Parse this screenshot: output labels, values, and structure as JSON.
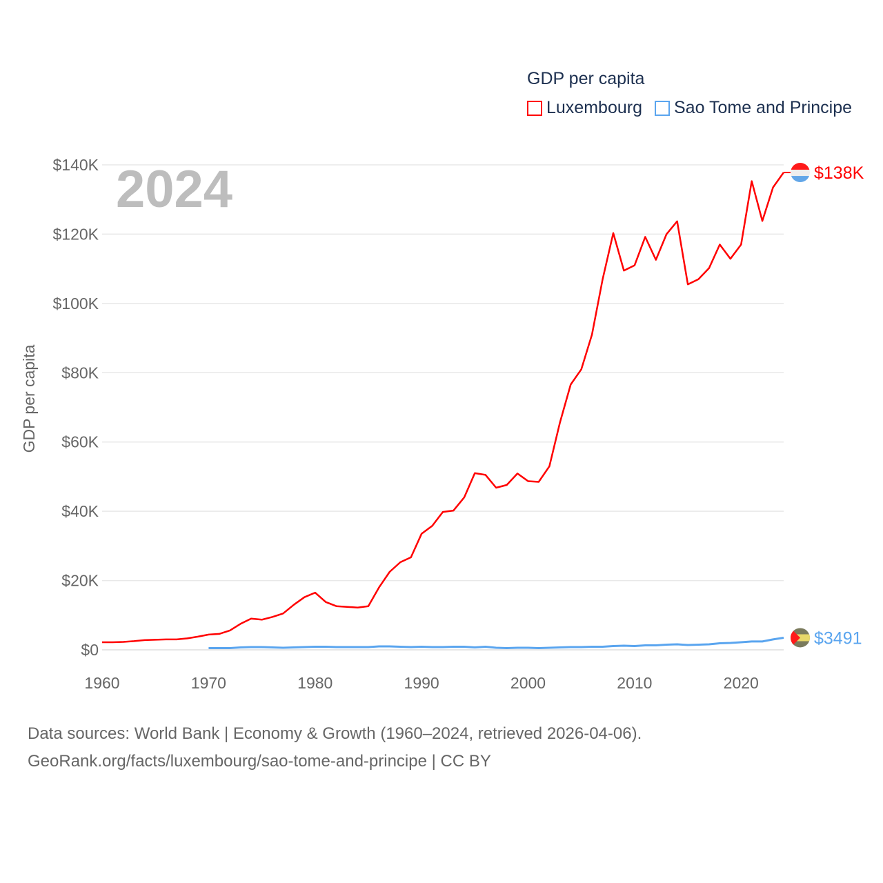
{
  "chart_data": {
    "type": "line",
    "title": "GDP per capita",
    "year_label": "2024",
    "xlabel": "",
    "ylabel": "GDP per capita",
    "xlim": [
      1960,
      2024
    ],
    "ylim": [
      0,
      140000
    ],
    "x_ticks": [
      "1960",
      "1970",
      "1980",
      "1990",
      "2000",
      "2010",
      "2020"
    ],
    "y_ticks": [
      "$0",
      "$20K",
      "$40K",
      "$60K",
      "$80K",
      "$100K",
      "$120K",
      "$140K"
    ],
    "grid": true,
    "legend_position": "top-right",
    "series": [
      {
        "name": "Luxembourg",
        "color": "#ff0000",
        "start": 1960,
        "end_label": "$138K",
        "values": [
          2.2,
          2.2,
          2.3,
          2.5,
          2.8,
          2.9,
          3.0,
          3.0,
          3.3,
          3.8,
          4.4,
          4.6,
          5.6,
          7.5,
          9.0,
          8.7,
          9.5,
          10.5,
          13.0,
          15.2,
          16.5,
          13.8,
          12.6,
          12.4,
          12.2,
          12.6,
          18.0,
          22.5,
          25.3,
          26.7,
          33.5,
          35.8,
          39.8,
          40.2,
          44.0,
          51.0,
          50.5,
          46.8,
          47.6,
          50.9,
          48.7,
          48.5,
          53.0,
          65.7,
          76.6,
          81.0,
          91.0,
          107.0,
          120.3,
          109.5,
          111.0,
          119.2,
          112.6,
          120.0,
          123.7,
          105.5,
          107.0,
          110.2,
          117.0,
          112.9,
          117.0,
          135.3,
          123.8,
          133.5,
          137.8
        ]
      },
      {
        "name": "Sao Tome and Principe",
        "color": "#5aa5ef",
        "start": 1970,
        "end_label": "$3491",
        "values": [
          0.5,
          0.5,
          0.5,
          0.7,
          0.8,
          0.8,
          0.7,
          0.6,
          0.7,
          0.8,
          0.9,
          0.9,
          0.8,
          0.8,
          0.8,
          0.8,
          1.0,
          1.0,
          0.9,
          0.8,
          0.9,
          0.8,
          0.8,
          0.9,
          0.9,
          0.7,
          0.9,
          0.6,
          0.5,
          0.6,
          0.6,
          0.5,
          0.6,
          0.7,
          0.8,
          0.8,
          0.9,
          0.9,
          1.1,
          1.2,
          1.1,
          1.3,
          1.3,
          1.5,
          1.6,
          1.4,
          1.5,
          1.6,
          1.9,
          2.0,
          2.2,
          2.4,
          2.4,
          3.0,
          3.49
        ]
      }
    ],
    "value_units": "thousand USD"
  },
  "source_line1": "Data sources: World Bank | Economy & Growth (1960–2024, retrieved 2026-04-06).",
  "source_line2": "GeoRank.org/facts/luxembourg/sao-tome-and-principe | CC BY"
}
